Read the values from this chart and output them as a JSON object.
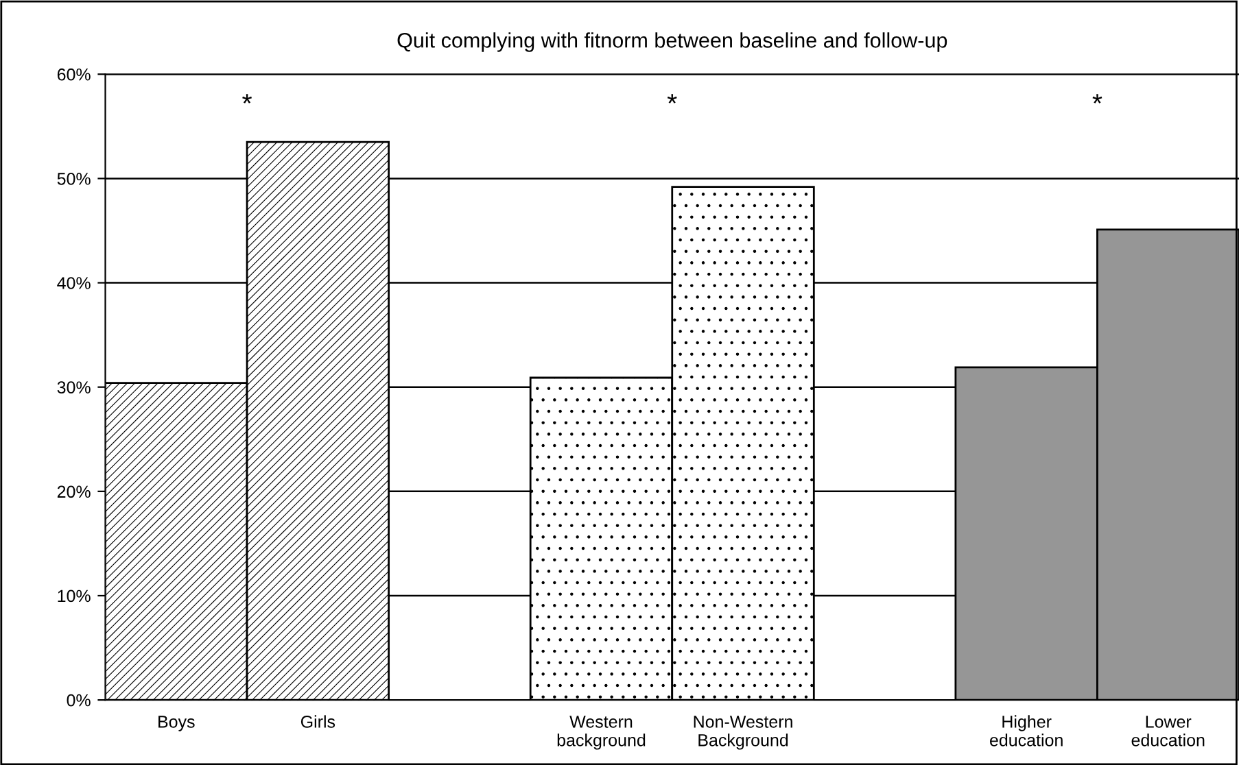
{
  "chart_data": {
    "type": "bar",
    "title": "Quit complying with fitnorm between baseline and follow-up",
    "categories": [
      "Boys",
      "Girls",
      null,
      "Western\nbackground",
      "Non-Western\nBackground",
      null,
      "Higher\neducation",
      "Lower\neducation"
    ],
    "values": [
      30.4,
      53.5,
      null,
      30.9,
      49.2,
      null,
      31.9,
      45.1
    ],
    "colors": [
      "#000000",
      "#000000",
      "#ffffff",
      "#000000",
      "#000000",
      "#ffffff",
      "#969696",
      "#969696"
    ],
    "ylim": [
      0,
      60
    ],
    "yticks": [
      {
        "value": 0,
        "label": "0%"
      },
      {
        "value": 10,
        "label": "10%"
      },
      {
        "value": 20,
        "label": "20%"
      },
      {
        "value": 30,
        "label": "30%"
      },
      {
        "value": 40,
        "label": "40%"
      },
      {
        "value": 50,
        "label": "50%"
      },
      {
        "value": 60,
        "label": "60%"
      }
    ],
    "annotations": [
      "*",
      "*",
      "*"
    ],
    "grid": "y",
    "legend": false
  }
}
